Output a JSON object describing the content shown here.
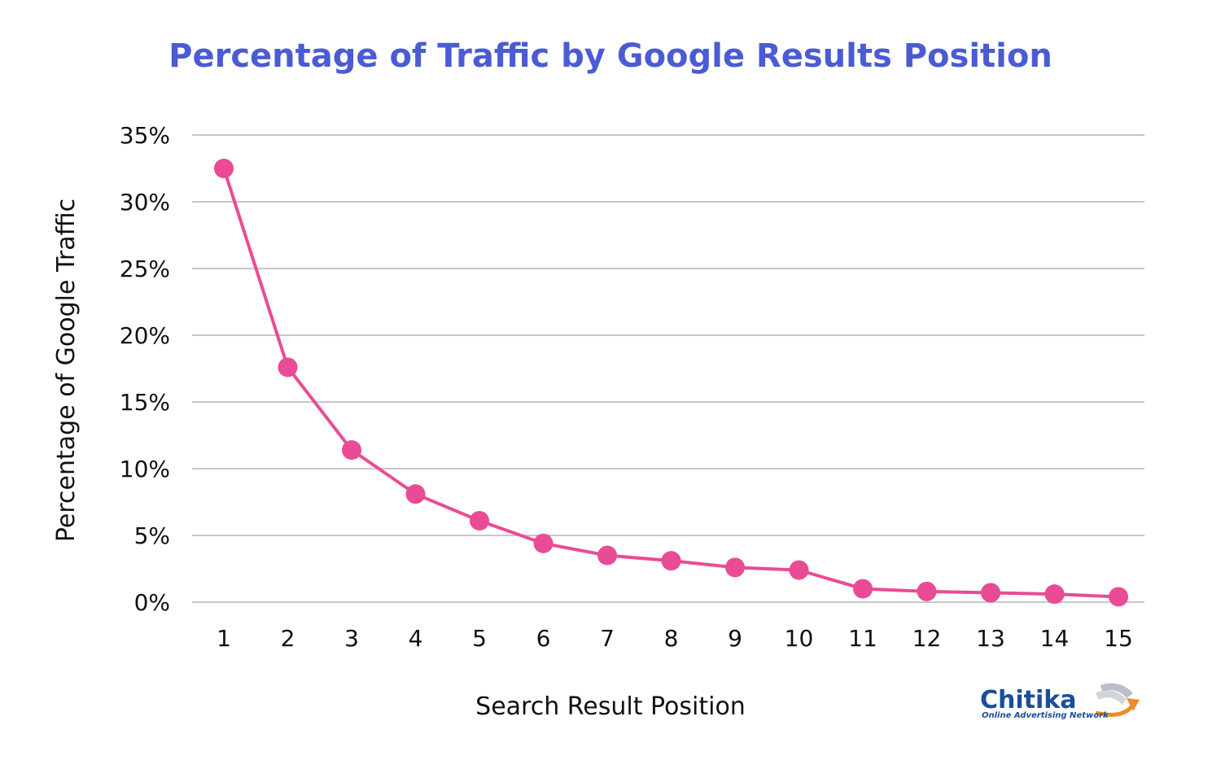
{
  "chart_data": {
    "type": "line",
    "title": "Percentage of Traffic by Google Results Position",
    "xlabel": "Search Result Position",
    "ylabel": "Percentage of Google Traffic",
    "categories": [
      "1",
      "2",
      "3",
      "4",
      "5",
      "6",
      "7",
      "8",
      "9",
      "10",
      "11",
      "12",
      "13",
      "14",
      "15"
    ],
    "series": [
      {
        "values": [
          32.5,
          17.6,
          11.4,
          8.1,
          6.1,
          4.4,
          3.5,
          3.1,
          2.6,
          2.4,
          1.0,
          0.8,
          0.7,
          0.6,
          0.4
        ]
      }
    ],
    "yticks": [
      "0%",
      "5%",
      "10%",
      "15%",
      "20%",
      "25%",
      "30%",
      "35%"
    ],
    "ylim": [
      0,
      35
    ],
    "grid": true,
    "legend": "none",
    "colors": {
      "title": "#4a5bd4",
      "line": "#e94b94",
      "grid": "#c8c8c8",
      "text": "#111111"
    }
  },
  "logo": {
    "name": "Chitika",
    "tagline": "Online Advertising Network",
    "colors": {
      "name": "#1a4e9a",
      "arrow": "#f08a24"
    }
  }
}
